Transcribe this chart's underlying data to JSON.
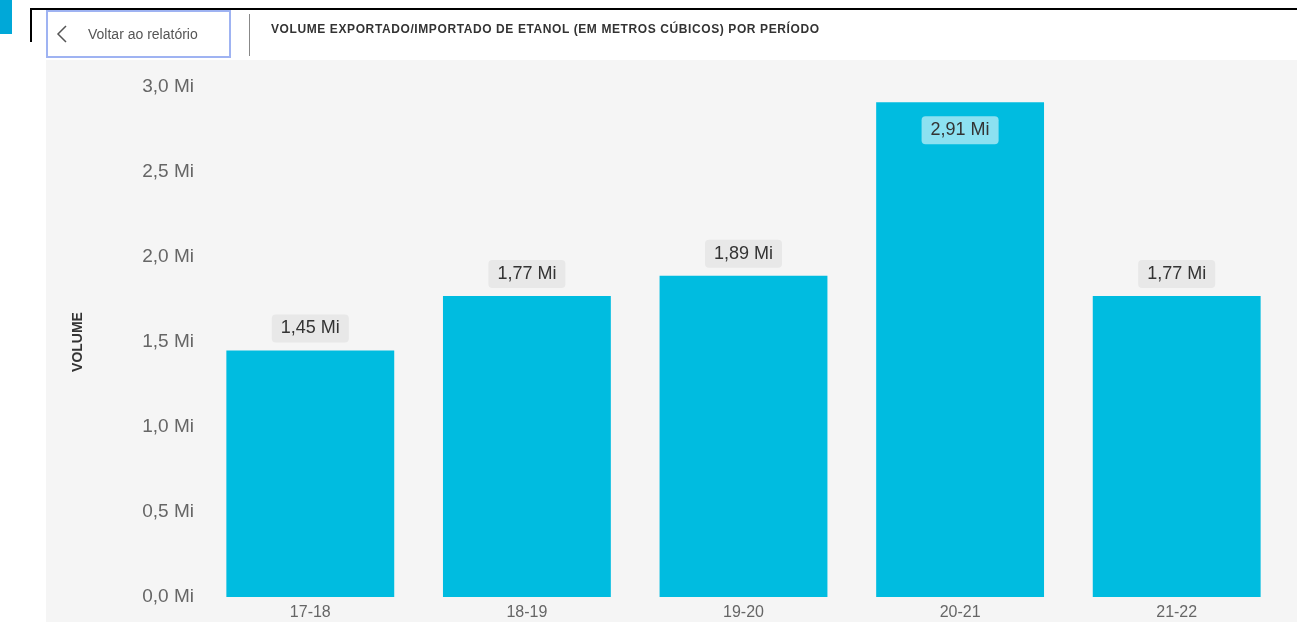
{
  "chart_data": {
    "type": "bar",
    "title": "VOLUME EXPORTADO/IMPORTADO DE ETANOL (EM METROS CÚBICOS) POR PERÍODO",
    "ylabel": "VOLUME",
    "annotations": [
      "Voltar ao relatório"
    ],
    "categories": [
      "17-18",
      "18-19",
      "19-20",
      "20-21",
      "21-22"
    ],
    "values": [
      1.45,
      1.77,
      1.89,
      2.91,
      1.77
    ],
    "value_labels": [
      "1,45 Mi",
      "1,77 Mi",
      "1,89 Mi",
      "2,91 Mi",
      "1,77 Mi"
    ],
    "color": "#00bce0",
    "ylim": [
      0,
      3.0
    ],
    "yticks": [
      {
        "value": 0,
        "label": "0,0 Mi"
      },
      {
        "value": 0.5,
        "label": "0,5 Mi"
      },
      {
        "value": 1.0,
        "label": "1,0 Mi"
      },
      {
        "value": 1.5,
        "label": "1,5 Mi"
      },
      {
        "value": 2.0,
        "label": "2,0 Mi"
      },
      {
        "value": 2.5,
        "label": "2,5 Mi"
      },
      {
        "value": 3.0,
        "label": "3,0 Mi"
      }
    ]
  }
}
